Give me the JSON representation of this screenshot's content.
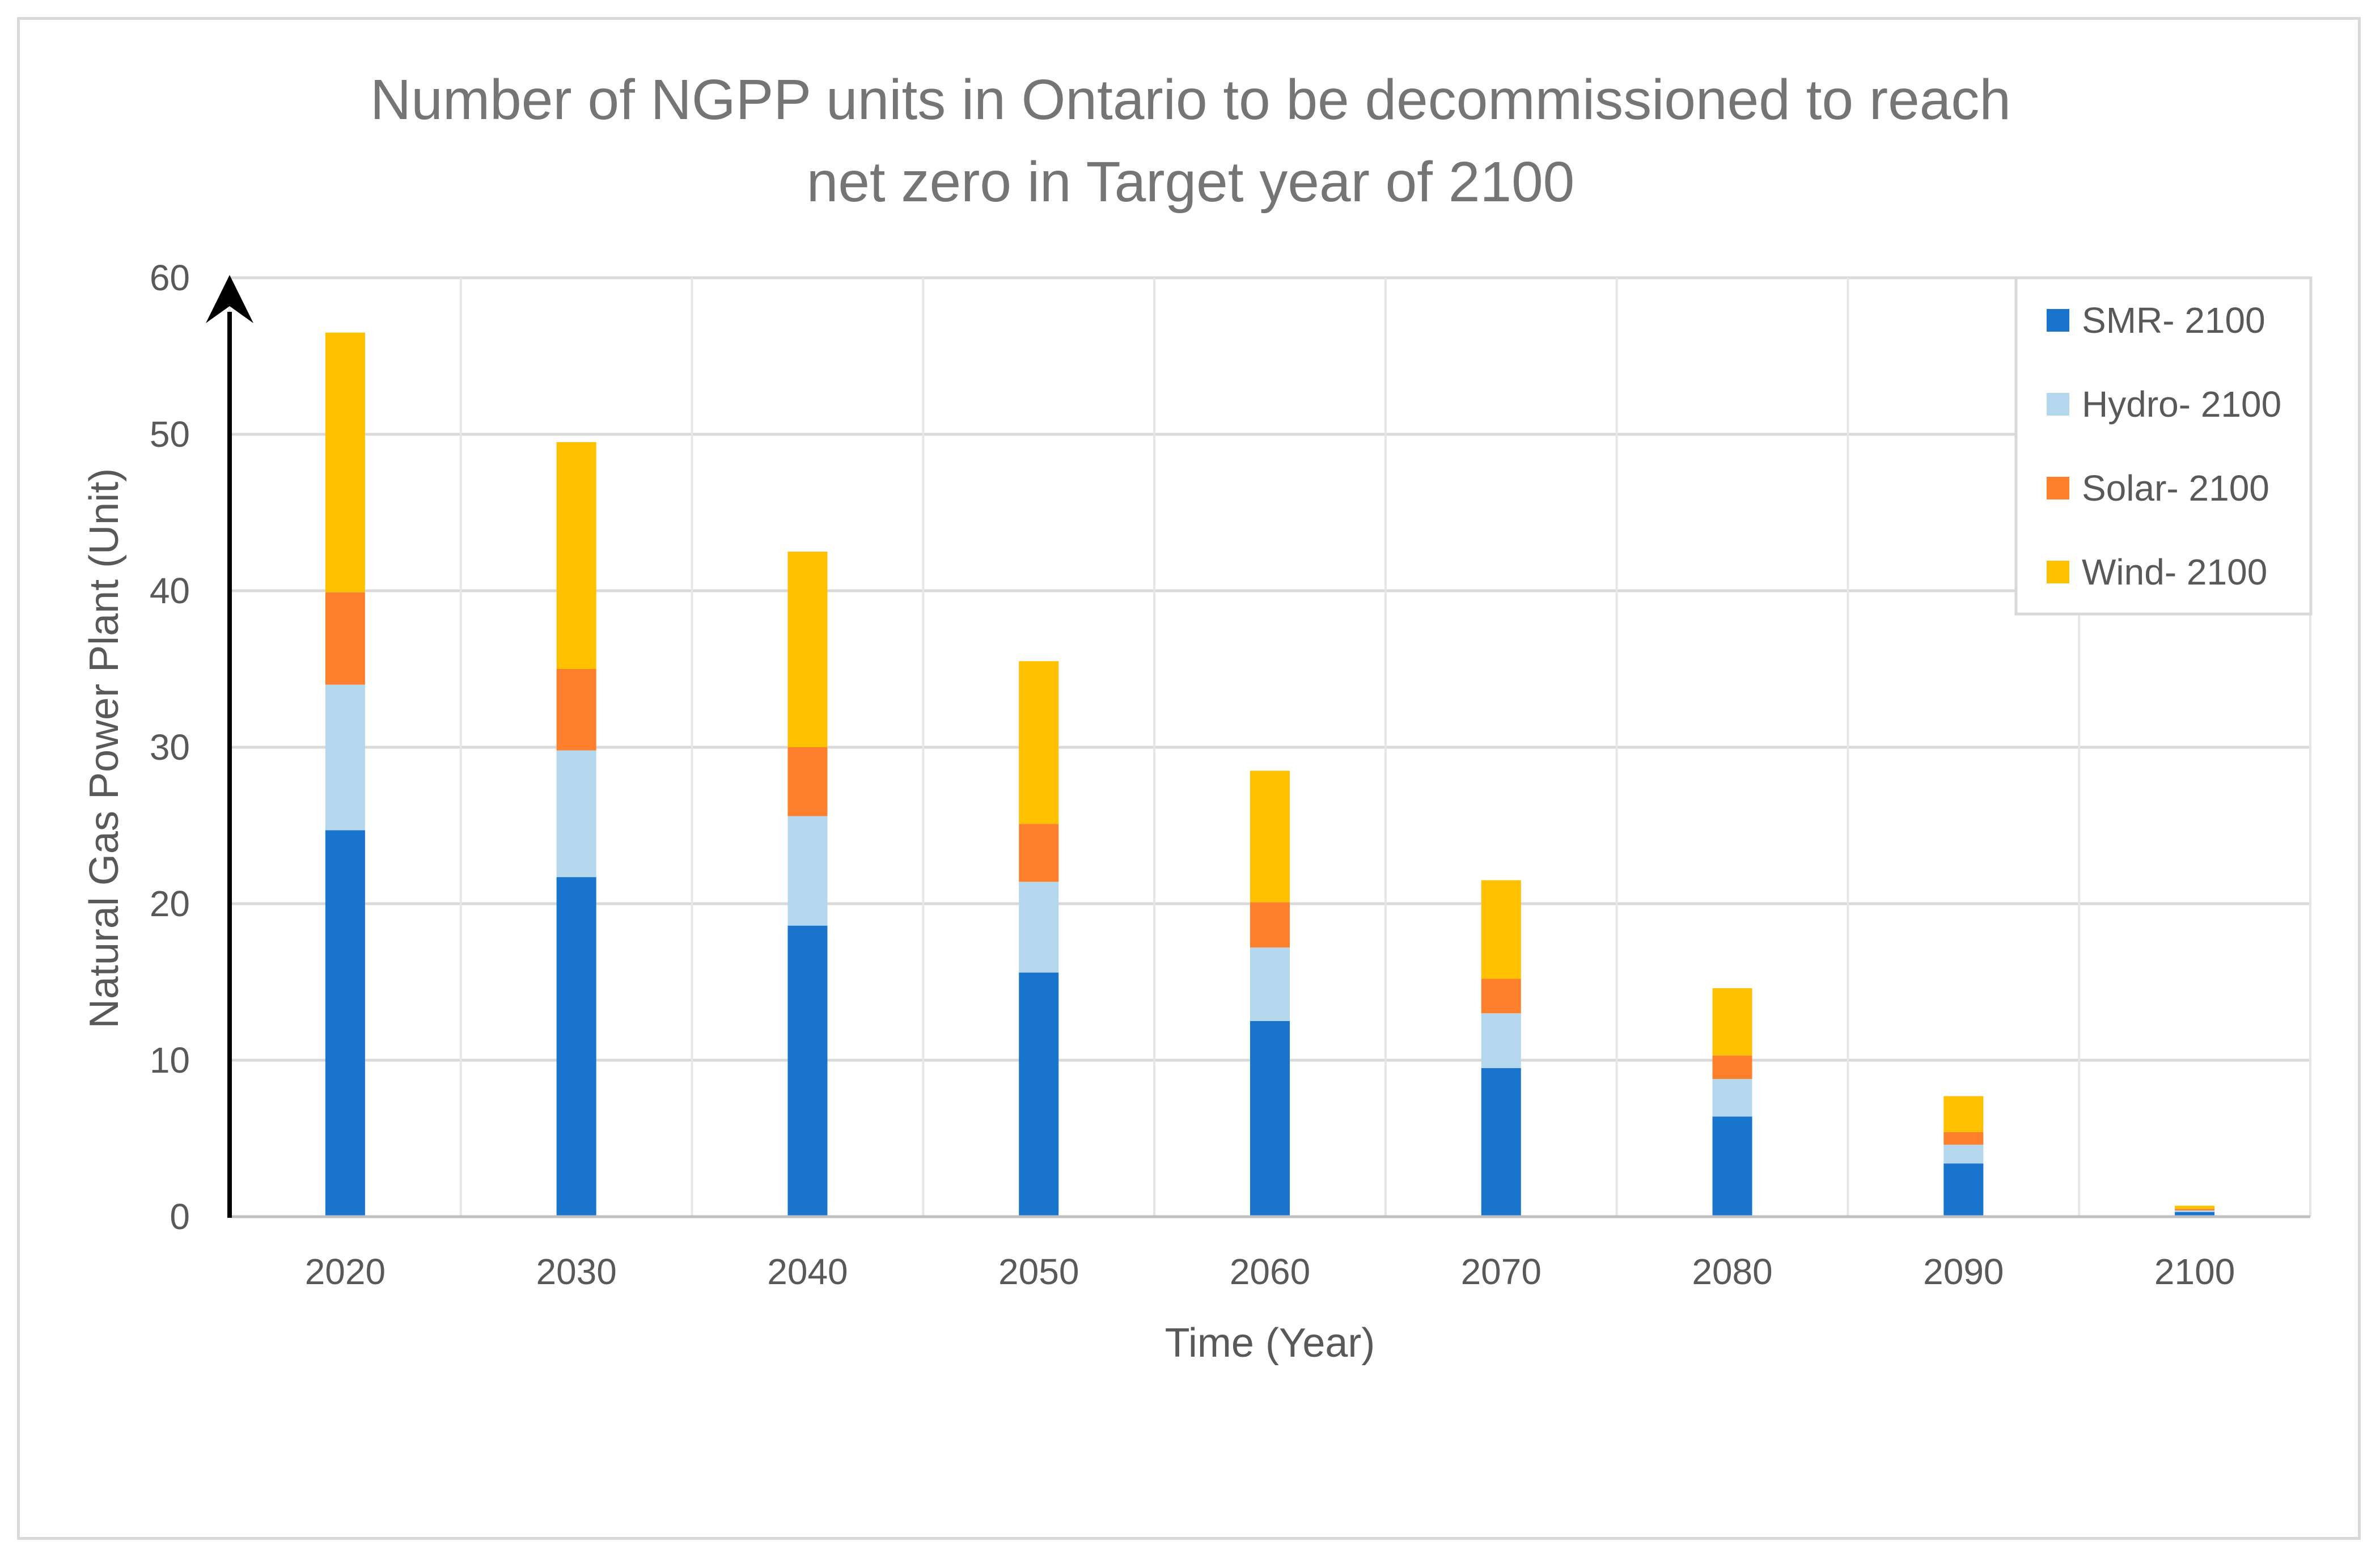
{
  "chart_data": {
    "type": "bar",
    "stacked": true,
    "title_lines": [
      "Number of NGPP units in Ontario to be decommissioned to reach",
      "net zero in Target year of 2100"
    ],
    "xlabel": "Time (Year)",
    "ylabel": "Natural Gas Power Plant (Unit)",
    "ylim": [
      0,
      60
    ],
    "yticks": [
      "0",
      "10",
      "20",
      "30",
      "40",
      "50",
      "60"
    ],
    "categories": [
      "2020",
      "2030",
      "2040",
      "2050",
      "2060",
      "2070",
      "2080",
      "2090",
      "2100"
    ],
    "grid": true,
    "legend_position": "top-right",
    "series": [
      {
        "name": "SMR- 2100",
        "color": "#1874cd",
        "values": [
          24.7,
          21.7,
          18.6,
          15.6,
          12.5,
          9.5,
          6.4,
          3.4,
          0.3
        ]
      },
      {
        "name": "Hydro- 2100",
        "color": "#b4d7ee",
        "values": [
          9.3,
          8.1,
          7.0,
          5.8,
          4.7,
          3.5,
          2.4,
          1.2,
          0.1
        ]
      },
      {
        "name": "Solar- 2100",
        "color": "#fd7f2c",
        "values": [
          5.9,
          5.2,
          4.4,
          3.7,
          2.9,
          2.2,
          1.5,
          0.8,
          0.1
        ]
      },
      {
        "name": "Wind- 2100",
        "color": "#ffc000",
        "values": [
          16.6,
          14.5,
          12.5,
          10.4,
          8.4,
          6.3,
          4.3,
          2.3,
          0.2
        ]
      }
    ]
  }
}
